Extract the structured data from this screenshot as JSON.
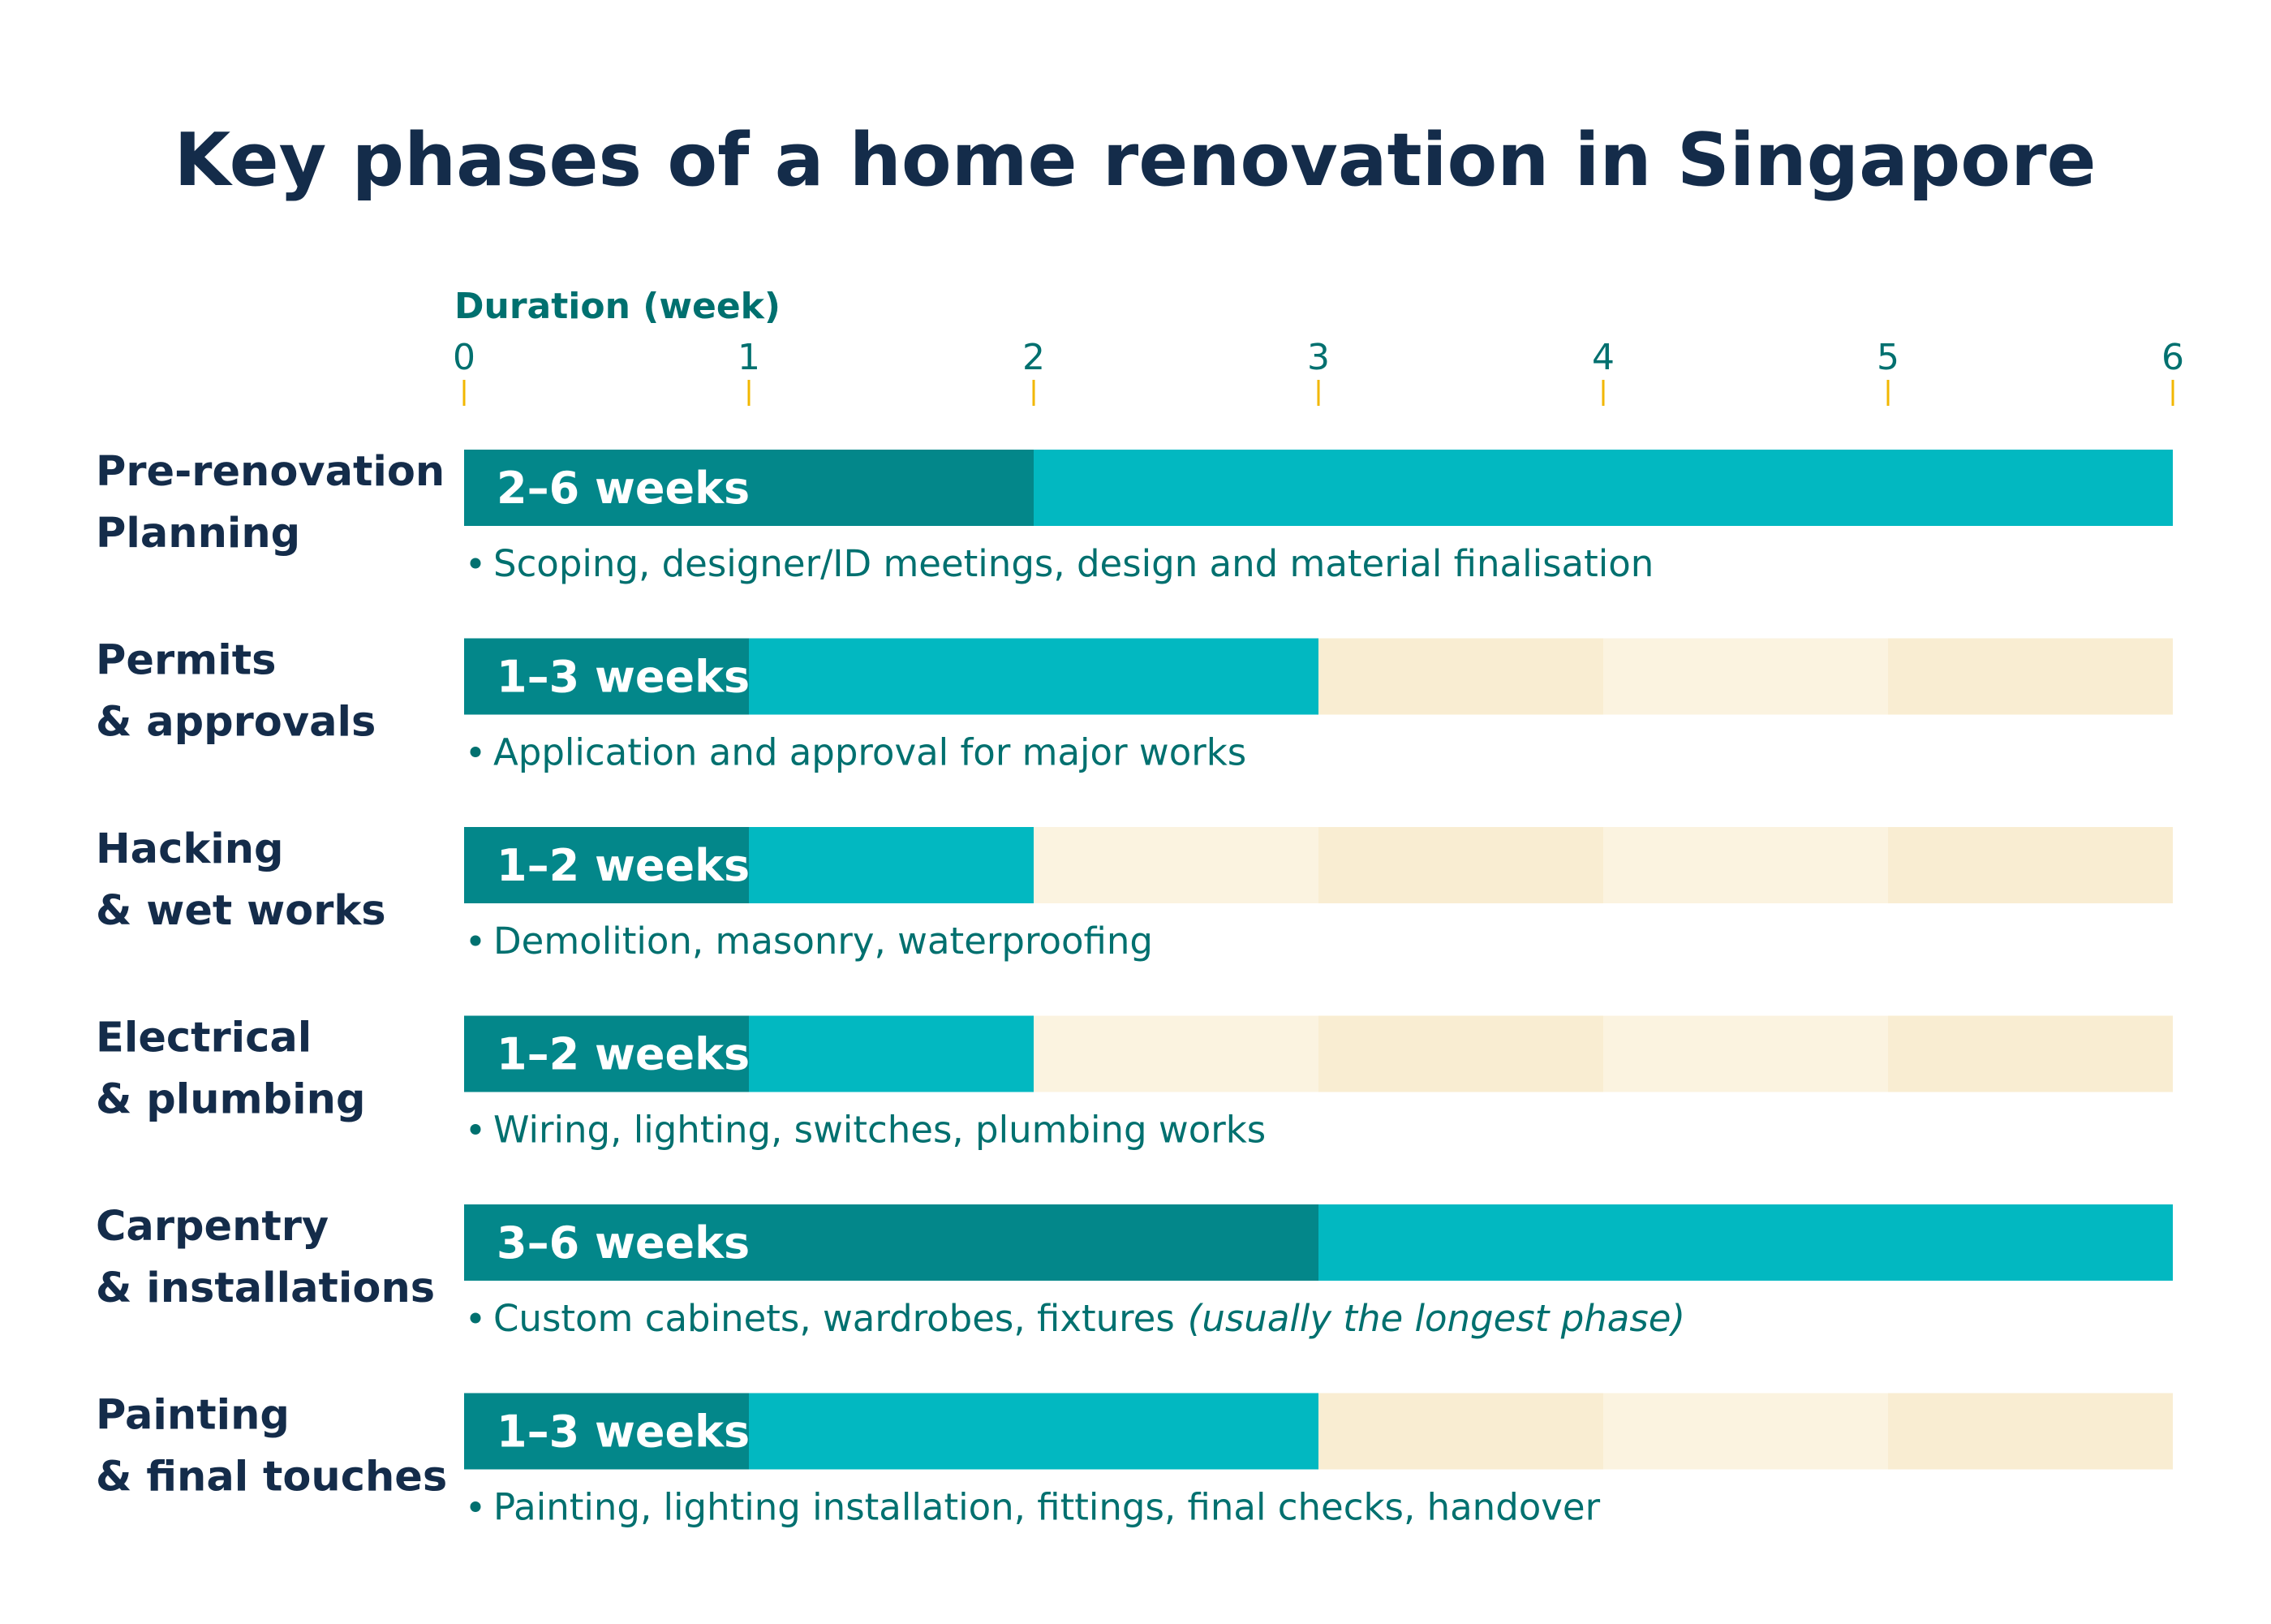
{
  "chart_data": {
    "type": "bar",
    "title": "Key phases of a home renovation in Singapore",
    "xlabel": "Duration (week)",
    "xlim": [
      0,
      6
    ],
    "xticks": [
      0,
      1,
      2,
      3,
      4,
      5,
      6
    ],
    "series": [
      {
        "name": "Minimum duration"
      },
      {
        "name": "Maximum duration"
      }
    ],
    "phases": [
      {
        "line1": "Pre-renovation",
        "line2": "Planning",
        "min": 2,
        "max": 6,
        "duration_label": "2–6 weeks",
        "description": "Scoping, designer/ID meetings, design and material finalisation",
        "note": ""
      },
      {
        "line1": "Permits",
        "line2": "& approvals",
        "min": 1,
        "max": 3,
        "duration_label": "1–3 weeks",
        "description": "Application and approval for major works",
        "note": ""
      },
      {
        "line1": "Hacking",
        "line2": "& wet works",
        "min": 1,
        "max": 2,
        "duration_label": "1–2 weeks",
        "description": "Demolition, masonry, waterproofing",
        "note": ""
      },
      {
        "line1": "Electrical",
        "line2": "& plumbing",
        "min": 1,
        "max": 2,
        "duration_label": "1–2 weeks",
        "description": "Wiring, lighting, switches, plumbing works",
        "note": ""
      },
      {
        "line1": "Carpentry",
        "line2": "& installations",
        "min": 3,
        "max": 6,
        "duration_label": "3–6 weeks",
        "description": "Custom cabinets, wardrobes, fixtures",
        "note": "(usually the longest phase)"
      },
      {
        "line1": "Painting",
        "line2": "& final touches",
        "min": 1,
        "max": 3,
        "duration_label": "1–3 weeks",
        "description": "Painting, lighting installation, fittings, final checks, handover",
        "note": ""
      }
    ],
    "colors": {
      "min_bar": "#03878a",
      "max_bar": "#02b8c1",
      "track_a": "#fbf3e0",
      "track_b": "#f9edd2",
      "tick_mark": "#f2b700",
      "title": "#142c4a",
      "accent": "#00706f"
    }
  }
}
